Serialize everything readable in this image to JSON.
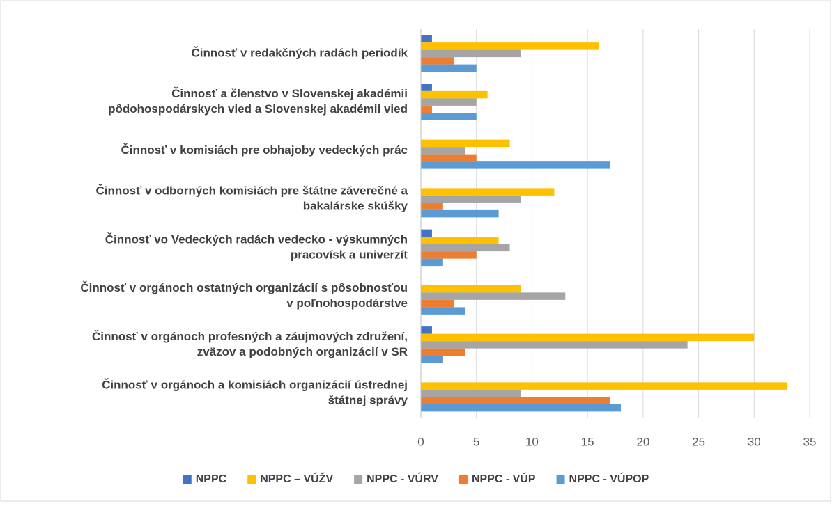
{
  "chart_data": {
    "type": "bar",
    "orientation": "horizontal",
    "categories": [
      [
        "Činnosť v redakčných radách periodík"
      ],
      [
        "Činnosť a členstvo v Slovenskej akadémii",
        "pôdohospodárskych vied a Slovenskej akadémii vied"
      ],
      [
        "Činnosť v komisiách pre obhajoby vedeckých prác"
      ],
      [
        "Činnosť v odborných komisiách pre štátne záverečné a",
        "bakalárske skúšky"
      ],
      [
        "Činnosť vo Vedeckých radách vedecko - výskumných",
        "pracovísk a univerzít"
      ],
      [
        "Činnosť v orgánoch ostatných organizácií s pôsobnosťou",
        "v poľnohospodárstve"
      ],
      [
        "Činnosť v orgánoch profesných a záujmových združení,",
        "zväzov a podobných organizácií v SR"
      ],
      [
        "Činnosť v orgánoch a komisiách organizácií ústrednej",
        "štátnej správy"
      ]
    ],
    "series": [
      {
        "name": "NPPC",
        "color": "#4472c4",
        "values": [
          1,
          1,
          0,
          0,
          1,
          0,
          1,
          0
        ]
      },
      {
        "name": "NPPC – VÚŽV",
        "color": "#ffc000",
        "values": [
          16,
          6,
          8,
          12,
          7,
          9,
          30,
          33
        ]
      },
      {
        "name": "NPPC - VÚRV",
        "color": "#a5a5a5",
        "values": [
          9,
          5,
          4,
          9,
          8,
          13,
          24,
          9
        ]
      },
      {
        "name": "NPPC - VÚP",
        "color": "#ed7d31",
        "values": [
          3,
          1,
          5,
          2,
          5,
          3,
          4,
          17
        ]
      },
      {
        "name": "NPPC - VÚPOP",
        "color": "#5b9bd5",
        "values": [
          5,
          5,
          17,
          7,
          2,
          4,
          2,
          18
        ]
      }
    ],
    "xlim": [
      0,
      35
    ],
    "xticks": [
      0,
      5,
      10,
      15,
      20,
      25,
      30,
      35
    ],
    "grid": true,
    "legend": "bottom"
  }
}
